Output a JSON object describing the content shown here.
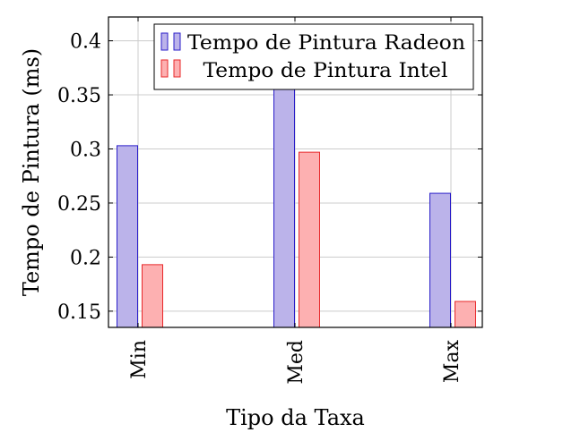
{
  "chart_data": {
    "type": "bar",
    "xlabel": "Tipo da Taxa",
    "ylabel": "Tempo de Pintura (ms)",
    "categories": [
      "Min",
      "Med",
      "Max"
    ],
    "ylim": [
      0.135,
      0.422
    ],
    "yticks": [
      0.15,
      0.2,
      0.25,
      0.3,
      0.35,
      0.4
    ],
    "ytick_labels": [
      "0.15",
      "0.2",
      "0.25",
      "0.3",
      "0.35",
      "0.4"
    ],
    "grid": true,
    "legend_position": "top-right",
    "series": [
      {
        "name": "Tempo de Pintura Radeon",
        "values": [
          0.303,
          0.376,
          0.259
        ],
        "fill": "#bbb3ea",
        "stroke": "#2b1fc9"
      },
      {
        "name": "Tempo de Pintura Intel",
        "values": [
          0.193,
          0.297,
          0.159
        ],
        "fill": "#fdb0b1",
        "stroke": "#e8282a"
      }
    ]
  }
}
